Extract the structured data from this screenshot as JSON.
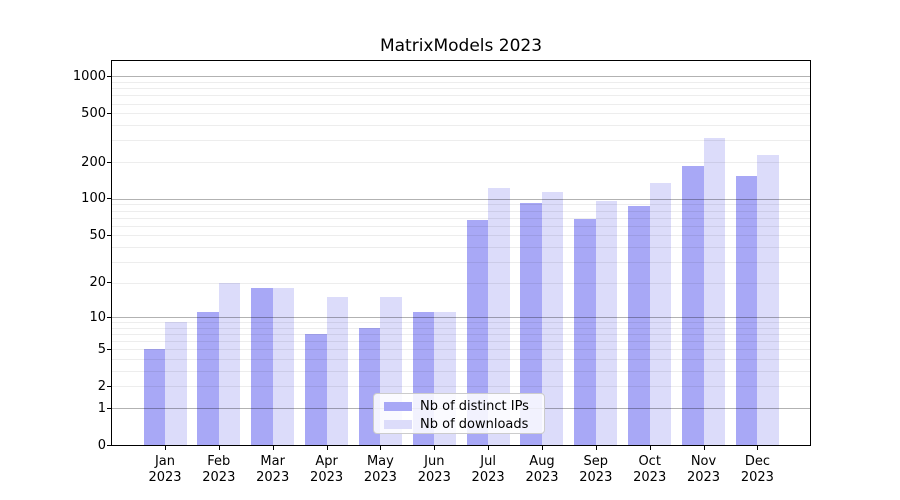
{
  "chart_data": {
    "type": "bar",
    "title": "MatrixModels 2023",
    "categories": [
      "Jan",
      "Feb",
      "Mar",
      "Apr",
      "May",
      "Jun",
      "Jul",
      "Aug",
      "Sep",
      "Oct",
      "Nov",
      "Dec"
    ],
    "x_year": "2023",
    "series": [
      {
        "name": "Nb of distinct IPs",
        "color": "#a8a8f6",
        "values": [
          5,
          11,
          18,
          7,
          8,
          11,
          67,
          92,
          68,
          87,
          185,
          153
        ]
      },
      {
        "name": "Nb of downloads",
        "color": "#dcdcfa",
        "values": [
          9,
          20,
          18,
          15,
          15,
          11,
          122,
          113,
          95,
          135,
          312,
          230
        ]
      }
    ],
    "yscale": "log1p",
    "y_ticks": [
      0,
      1,
      2,
      5,
      10,
      20,
      50,
      100,
      200,
      500,
      1000
    ],
    "ylim": [
      0,
      1332
    ],
    "xlabel": "",
    "ylabel": "",
    "grid": true,
    "legend_position": "lower center"
  }
}
